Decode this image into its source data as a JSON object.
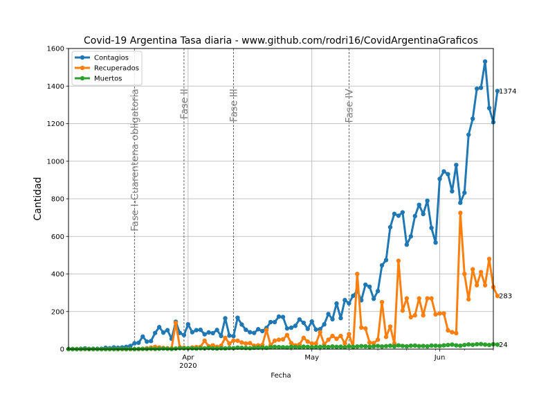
{
  "chart_data": {
    "type": "line",
    "title": "Covid-19 Argentina Tasa diaria - www.github.com/rodri16/CovidArgentinaGraficos",
    "xlabel": "Fecha",
    "ylabel": "Cantidad",
    "ylim": [
      0,
      1600
    ],
    "yticks": [
      0,
      200,
      400,
      600,
      800,
      1000,
      1200,
      1400,
      1600
    ],
    "x_start": "2020-03-03",
    "x_end": "2020-06-14",
    "xticks": [
      {
        "date": "2020-04-01",
        "label": "Apr",
        "sublabel": "2020"
      },
      {
        "date": "2020-05-01",
        "label": "May",
        "sublabel": ""
      },
      {
        "date": "2020-06-01",
        "label": "Jun",
        "sublabel": ""
      }
    ],
    "grid": true,
    "legend_position": "top-left",
    "phases": [
      {
        "date": "2020-03-19",
        "label": "Fase I-Cuarentena obligatoria"
      },
      {
        "date": "2020-03-31",
        "label": "Fase II"
      },
      {
        "date": "2020-04-12",
        "label": "Fase III"
      },
      {
        "date": "2020-05-10",
        "label": "Fase IV"
      }
    ],
    "end_labels": [
      "1374",
      "283",
      "24"
    ],
    "series": [
      {
        "name": "Contagios",
        "color": "#1f77b4",
        "start_date": "2020-03-03",
        "values": [
          1,
          1,
          0,
          2,
          4,
          1,
          2,
          2,
          2,
          7,
          5,
          9,
          7,
          9,
          12,
          17,
          31,
          34,
          67,
          40,
          43,
          86,
          117,
          88,
          101,
          55,
          146,
          86,
          75,
          132,
          90,
          101,
          103,
          79,
          89,
          85,
          102,
          70,
          164,
          72,
          69,
          167,
          131,
          103,
          90,
          86,
          106,
          96,
          113,
          144,
          144,
          173,
          171,
          110,
          114,
          124,
          158,
          140,
          108,
          147,
          104,
          106,
          132,
          187,
          159,
          243,
          165,
          261,
          244,
          284,
          311,
          260,
          343,
          332,
          268,
          309,
          446,
          474,
          649,
          720,
          710,
          728,
          556,
          600,
          708,
          768,
          719,
          790,
          645,
          567,
          906,
          946,
          931,
          840,
          980,
          779,
          832,
          1141,
          1226,
          1386,
          1391,
          1531,
          1283,
          1208,
          1374
        ]
      },
      {
        "name": "Recuperados",
        "color": "#ff7f0e",
        "start_date": "2020-03-03",
        "values": [
          0,
          0,
          0,
          0,
          0,
          0,
          0,
          0,
          0,
          0,
          0,
          0,
          0,
          0,
          0,
          0,
          0,
          0,
          2,
          5,
          8,
          12,
          9,
          6,
          5,
          4,
          140,
          10,
          8,
          4,
          9,
          11,
          12,
          45,
          15,
          20,
          12,
          18,
          60,
          30,
          45,
          45,
          35,
          30,
          32,
          18,
          20,
          22,
          102,
          20,
          45,
          50,
          52,
          75,
          32,
          20,
          25,
          60,
          40,
          30,
          30,
          90,
          25,
          50,
          70,
          55,
          70,
          30,
          80,
          10,
          400,
          115,
          110,
          35,
          32,
          50,
          250,
          65,
          120,
          30,
          470,
          205,
          270,
          170,
          180,
          270,
          180,
          270,
          270,
          185,
          190,
          190,
          100,
          90,
          85,
          725,
          400,
          265,
          425,
          340,
          410,
          340,
          480,
          330,
          283
        ]
      },
      {
        "name": "Muertos",
        "color": "#2ca02c",
        "start_date": "2020-03-03",
        "values": [
          0,
          0,
          0,
          0,
          1,
          0,
          0,
          0,
          0,
          0,
          0,
          0,
          0,
          1,
          0,
          1,
          0,
          1,
          1,
          1,
          2,
          1,
          2,
          3,
          2,
          1,
          3,
          5,
          4,
          5,
          4,
          3,
          5,
          4,
          6,
          4,
          3,
          5,
          4,
          6,
          5,
          8,
          7,
          6,
          5,
          7,
          8,
          9,
          7,
          10,
          12,
          11,
          10,
          9,
          12,
          11,
          10,
          13,
          12,
          10,
          11,
          12,
          13,
          11,
          14,
          12,
          13,
          10,
          15,
          12,
          14,
          16,
          15,
          13,
          15,
          17,
          14,
          16,
          18,
          15,
          20,
          17,
          15,
          18,
          19,
          16,
          17,
          15,
          19,
          18,
          17,
          20,
          22,
          24,
          20,
          18,
          22,
          25,
          23,
          26,
          27,
          24,
          22,
          26,
          24
        ]
      }
    ]
  }
}
